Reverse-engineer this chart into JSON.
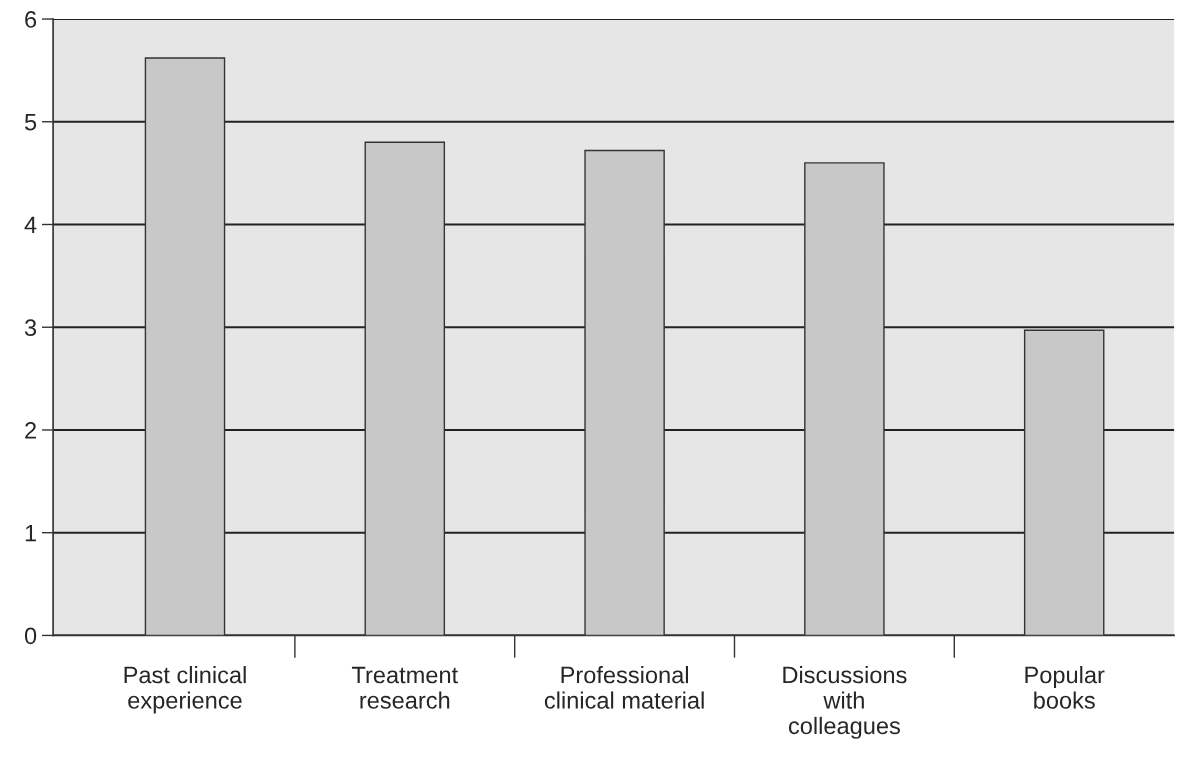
{
  "chart_data": {
    "type": "bar",
    "categories": [
      "Past clinical\nexperience",
      "Treatment\nresearch",
      "Professional\nclinical material",
      "Discussions\nwith\ncolleagues",
      "Popular\nbooks"
    ],
    "values": [
      5.62,
      4.8,
      4.72,
      4.6,
      2.97
    ],
    "color": "#c8c8c8",
    "ylim": [
      0,
      6
    ],
    "yticks": [
      0,
      1,
      2,
      3,
      4,
      5,
      6
    ],
    "grid": "y"
  }
}
